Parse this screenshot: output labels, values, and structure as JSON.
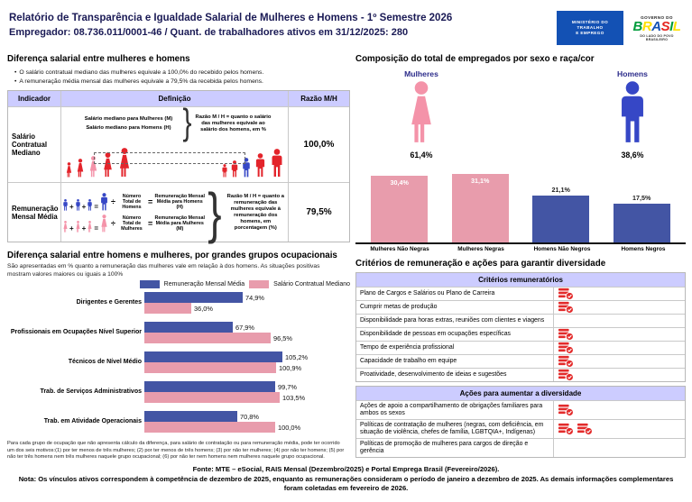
{
  "header": {
    "title_line1": "Relatório de Transparência e Igualdade Salarial de Mulheres e Homens - 1º Semestre 2026",
    "title_line2": "Empregador: 08.736.011/0001-46 / Quant. de trabalhadores ativos em 31/12/2025: 280",
    "mte_logo_lines": [
      "MINISTÉRIO DO",
      "TRABALHO",
      "E EMPREGO"
    ],
    "gov_logo": {
      "top": "GOVERNO DO",
      "brand": "BRASIL",
      "brand_colors": [
        "#009c3b",
        "#ffdf00",
        "#1351b4",
        "#e52521",
        "#009c3b",
        "#ffdf00"
      ],
      "bottom": "DO LADO DO POVO BRASILEIRO"
    }
  },
  "colors": {
    "red": "#e3242b",
    "pink": "#f493a9",
    "blue": "#3647c6",
    "bar_pink": "#e89cac",
    "bar_blue": "#4355a4",
    "header_lavender": "#ccccff",
    "icon_red": "#e32b2b",
    "title_navy": "#1a1a55"
  },
  "salary_diff": {
    "title": "Diferença salarial entre mulheres e homens",
    "bullets": [
      "O salário contratual mediano das mulheres equivale a 100,0% do recebido pelos homens.",
      "A remuneração média mensal das mulheres equivale a 79,5% da recebida pelos homens."
    ],
    "table": {
      "headers": [
        "Indicador",
        "Definição",
        "Razão M/H"
      ],
      "brace": "}",
      "rows": [
        {
          "indicator": "Salário Contratual Mediano",
          "def_lines": [
            "Salário mediano para Mulheres (M)",
            "Salário mediano para Homens (H)"
          ],
          "note": "Razão M / H = quanto o salário das mulheres equivale ao salário dos homens, em %",
          "ratio": "100,0%",
          "illustration": {
            "women": [
              "red",
              "red",
              "pink",
              "red",
              "red"
            ],
            "men": [
              "red",
              "red",
              "blue",
              "red",
              "red"
            ]
          }
        },
        {
          "indicator": "Remuneração Mensal Média",
          "ops": {
            "plus": "+",
            "equals": "=",
            "divide": "÷"
          },
          "men": {
            "divisor": "Número Total de Homens",
            "result": "Remuneração Mensal Média para Homens (H)"
          },
          "women": {
            "divisor": "Número Total de Mulheres",
            "result": "Remuneração Mensal Média para Mulheres (M)"
          },
          "note": "Razão M / H = quanto a remuneração das mulheres equivale à remuneração dos homens, em porcentagem (%)",
          "ratio": "79,5%"
        }
      ]
    }
  },
  "composition": {
    "title": "Composição do total de empregados por sexo e raça/cor",
    "female": {
      "label": "Mulheres",
      "pct": "61,4%"
    },
    "male": {
      "label": "Homens",
      "pct": "38,6%"
    }
  },
  "occupational": {
    "title": "Diferença salarial entre homens e mulheres, por grandes grupos ocupacionais",
    "subtitle": "São apresentadas em % quanto a remuneração das mulheres vale em relação à dos homens. As situações positivas mostram valores maiores ou iguais a 100%",
    "footnote": "Para cada grupo de ocupação que não apresenta cálculo da diferença, para salário de contratação ou para remuneração média, pode ter ocorrido um dos seis motivos:(1) por ter menos de três mulheres; (2) por ter menos de três homens; (3) por não ter mulheres; (4) por não ter homens; (5) por não ter três homens nem três mulheres naquele grupo ocupacional; (6) por não ter nem homens nem mulheres naquele grupo ocupacional."
  },
  "criteria": {
    "title": "Critérios de remuneração e ações para garantir diversidade",
    "sections": [
      {
        "header": "Critérios remuneratórios",
        "rows": [
          {
            "label": "Plano de Cargos e Salários ou Plano de Carreira",
            "icons": 1
          },
          {
            "label": "Cumprir metas de produção",
            "icons": 1
          },
          {
            "label": "Disponibilidade para horas extras, reuniões com clientes e viagens",
            "icons": 0
          },
          {
            "label": "Disponibilidade de pessoas em ocupações específicas",
            "icons": 1
          },
          {
            "label": "Tempo de experiência profissional",
            "icons": 1
          },
          {
            "label": "Capacidade de trabalho em equipe",
            "icons": 1
          },
          {
            "label": "Proatividade, desenvolvimento de ideias e sugestões",
            "icons": 1
          }
        ]
      },
      {
        "header": "Ações para aumentar a diversidade",
        "rows": [
          {
            "label": "Ações de apoio a compartilhamento de obrigações familiares para ambos os sexos",
            "icons": 1
          },
          {
            "label": "Políticas de contratação de mulheres (negras, com deficiência, em situação de violência, chefes de família, LGBTQIA+, Indígenas)",
            "icons": 2
          },
          {
            "label": "Políticas de promoção de mulheres para cargos de direção e gerência",
            "icons": 0
          }
        ]
      }
    ]
  },
  "chart_data": [
    {
      "type": "bar",
      "title": "Composição do total de empregados por sexo e raça/cor",
      "categories": [
        "Mulheres Não Negras",
        "Mulheres Negras",
        "Homens Não Negros",
        "Homens Negros"
      ],
      "values": [
        30.4,
        31.1,
        21.1,
        17.5
      ],
      "value_labels": [
        "30,4%",
        "31,1%",
        "21,1%",
        "17,5%"
      ],
      "bar_colors": [
        "#e89cac",
        "#e89cac",
        "#4355a4",
        "#4355a4"
      ],
      "label_inside": [
        true,
        true,
        false,
        false
      ],
      "ylim": [
        0,
        35
      ],
      "grid": false
    },
    {
      "type": "bar",
      "orientation": "horizontal",
      "title": "Diferença salarial entre homens e mulheres, por grandes grupos ocupacionais",
      "categories": [
        "Dirigentes e Gerentes",
        "Profissionais em Ocupações Nível Superior",
        "Técnicos de Nível Médio",
        "Trab. de Serviços Administrativos",
        "Trab. em Atividade Operacionais"
      ],
      "series": [
        {
          "name": "Remuneração Mensal Média",
          "color": "#4355a4",
          "values": [
            74.9,
            67.9,
            105.2,
            99.7,
            70.8
          ],
          "value_labels": [
            "74,9%",
            "67,9%",
            "105,2%",
            "99,7%",
            "70,8%"
          ]
        },
        {
          "name": "Salário Contratual Mediano",
          "color": "#e89cac",
          "values": [
            36.0,
            96.5,
            100.9,
            103.5,
            100.0
          ],
          "value_labels": [
            "36,0%",
            "96,5%",
            "100,9%",
            "103,5%",
            "100,0%"
          ]
        }
      ],
      "xlim": [
        0,
        110
      ],
      "legend_position": "top-right",
      "grid": false
    }
  ],
  "footer": {
    "fonte": "Fonte: MTE – eSocial, RAIS Mensal (Dezembro/2025) e Portal Emprega Brasil (Fevereiro/2026).",
    "nota": "Nota: Os vínculos ativos correspondem à competência de dezembro de 2025, enquanto as remunerações consideram o período de janeiro a dezembro de 2025. As demais informações complementares foram coletadas em fevereiro de 2026."
  }
}
